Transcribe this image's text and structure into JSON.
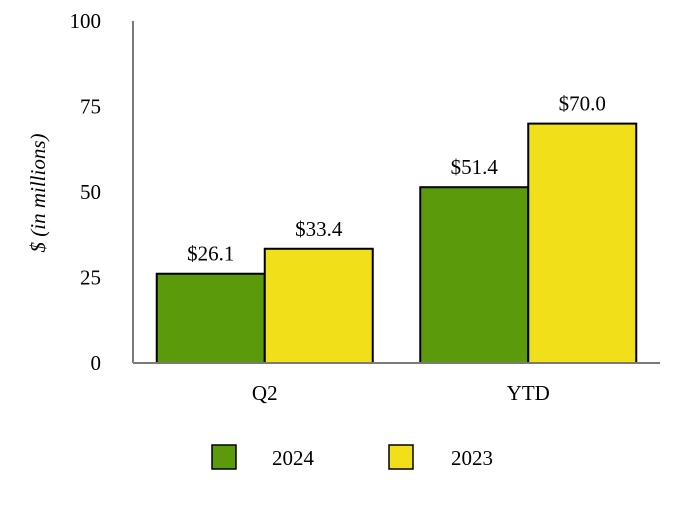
{
  "chart_data": {
    "type": "bar",
    "title": "",
    "xlabel": "",
    "ylabel": "$ (in millions)",
    "categories": [
      "Q2",
      "YTD"
    ],
    "series": [
      {
        "name": "2024",
        "values": [
          26.1,
          51.4
        ],
        "labels": [
          "$26.1",
          "$51.4"
        ],
        "color": "#5a9a0b"
      },
      {
        "name": "2023",
        "values": [
          33.4,
          70.0
        ],
        "labels": [
          "$33.4",
          "$70.0"
        ],
        "color": "#f0df19"
      }
    ],
    "ylim": [
      0,
      100
    ],
    "yticks": [
      0,
      25,
      50,
      75,
      100
    ],
    "ytick_labels": [
      "0",
      "25",
      "50",
      "75",
      "100"
    ],
    "grid": false,
    "legend_position": "bottom"
  }
}
